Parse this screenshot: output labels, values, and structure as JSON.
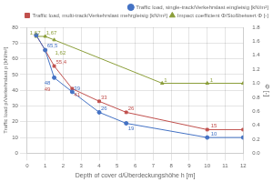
{
  "chart_data": {
    "type": "line",
    "x_label": "Depth of cover d/Überdeckungshöhe h [m]",
    "y_label": "Traffic load p/Verkehrslast p [kN/m²]",
    "y2_label": "Φ [-]",
    "xlim": [
      0,
      12
    ],
    "xticks": [
      0,
      1,
      2,
      3,
      4,
      5,
      6,
      7,
      8,
      9,
      10,
      11,
      12
    ],
    "ylim": [
      0,
      80
    ],
    "yticks": [
      0,
      10,
      20,
      30,
      40,
      50,
      60,
      70,
      80
    ],
    "y2lim": [
      0,
      1.8
    ],
    "y2ticks": [
      {
        "value": 0,
        "label": "0.0"
      },
      0.2,
      0.4,
      0.6,
      0.8,
      {
        "value": 1,
        "label": "1.0"
      },
      1.2,
      1.4,
      1.6,
      1.8
    ],
    "grid": true,
    "legend": "upper right",
    "series": [
      {
        "name": "Traffic load, single-track/Verkehrslast eingleisig [kN/m²]",
        "color": "#4472C4",
        "marker": "circle",
        "x": [
          0.5,
          1.0,
          1.5,
          2.5,
          4.0,
          5.5,
          10.0,
          12.0
        ],
        "values": [
          75,
          65.5,
          48,
          39,
          26,
          19,
          10,
          10
        ]
      },
      {
        "name": "Traffic load, multi-track/Verkehrslast mehrgleisig [kN/m²]",
        "color": "#C0504D",
        "marker": "square",
        "x": [
          0.5,
          1.0,
          1.5,
          2.5,
          4.0,
          5.5,
          10.0,
          12.0
        ],
        "values": [
          75,
          65.5,
          55.4,
          41,
          33,
          26,
          15,
          15
        ]
      },
      {
        "name": "Impact coefficient Φ/Stoßbeiwert Φ [-]",
        "color": "#8B9E3A",
        "marker": "triangle",
        "axis": "y2",
        "x": [
          0.5,
          1.0,
          1.5,
          7.5,
          10.0,
          12.0
        ],
        "values": [
          1.67,
          1.67,
          1.62,
          1.0,
          1.0,
          1.0
        ]
      }
    ],
    "annotations": [
      {
        "text": "65,5",
        "x": 1.1,
        "y": 67,
        "color": "#4472C4"
      },
      {
        "text": "48",
        "x": 0.95,
        "y": 43.5,
        "color": "#4472C4"
      },
      {
        "text": "39",
        "x": 2.6,
        "y": 40.2,
        "color": "#4472C4"
      },
      {
        "text": "26",
        "x": 4.1,
        "y": 27.2,
        "color": "#4472C4"
      },
      {
        "text": "19",
        "x": 5.6,
        "y": 14.5,
        "color": "#4472C4"
      },
      {
        "text": "10",
        "x": 10.2,
        "y": 11.2,
        "color": "#4472C4"
      },
      {
        "text": "55,4",
        "x": 1.6,
        "y": 56.9,
        "color": "#C0504D"
      },
      {
        "text": "49",
        "x": 0.95,
        "y": 44,
        "color": "#C0504D"
      },
      {
        "text": "41",
        "x": 2.6,
        "y": 42.2,
        "color": "#C0504D"
      },
      {
        "text": "33",
        "x": 4.1,
        "y": 34.2,
        "color": "#C0504D"
      },
      {
        "text": "26",
        "x": 5.6,
        "y": 27.2,
        "color": "#C0504D"
      },
      {
        "text": "15",
        "x": 10.2,
        "y": 16.2,
        "color": "#C0504D"
      },
      {
        "text": "1,67",
        "x": 0.15,
        "y": 1.7,
        "axis": "y2",
        "color": "#8B9E3A"
      },
      {
        "text": "1,67",
        "x": 1.05,
        "y": 1.7,
        "axis": "y2",
        "color": "#8B9E3A"
      },
      {
        "text": "1,62",
        "x": 1.55,
        "y": 1.65,
        "axis": "y2",
        "color": "#8B9E3A"
      },
      {
        "text": "1",
        "x": 7.6,
        "y": 1.02,
        "axis": "y2",
        "color": "#8B9E3A"
      },
      {
        "text": "1",
        "x": 10.15,
        "y": 1.02,
        "axis": "y2",
        "color": "#8B9E3A"
      }
    ]
  }
}
